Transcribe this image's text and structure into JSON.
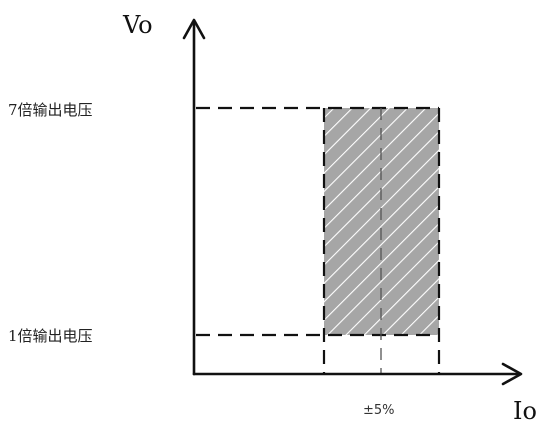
{
  "diagram": {
    "y_axis_label": "Vo",
    "x_axis_label": "Io",
    "upper_level_label": "7倍输出电压",
    "lower_level_label": "1倍输出电压",
    "tolerance_label": "±5%",
    "colors": {
      "ink": "#111111",
      "region_fill": "#a6a6a6",
      "hatch": "#ffffff"
    }
  }
}
